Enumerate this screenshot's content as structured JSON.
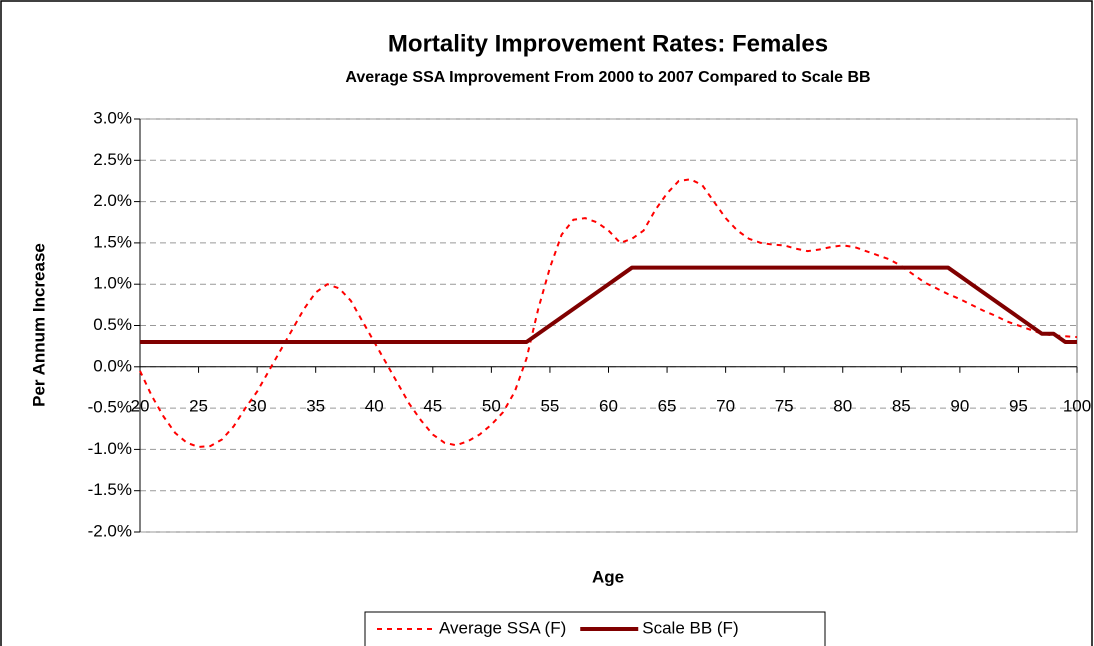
{
  "chart_data": {
    "type": "line",
    "title": "Mortality Improvement Rates: Females",
    "subtitle": "Average SSA Improvement From 2000 to 2007 Compared to Scale BB",
    "x_label": "Age",
    "y_label": "Per Annum Increase",
    "x": [
      20,
      21,
      22,
      23,
      24,
      25,
      26,
      27,
      28,
      29,
      30,
      31,
      32,
      33,
      34,
      35,
      36,
      37,
      38,
      39,
      40,
      41,
      42,
      43,
      44,
      45,
      46,
      47,
      48,
      49,
      50,
      51,
      52,
      53,
      54,
      55,
      56,
      57,
      58,
      59,
      60,
      61,
      62,
      63,
      64,
      65,
      66,
      67,
      68,
      69,
      70,
      71,
      72,
      73,
      74,
      75,
      76,
      77,
      78,
      79,
      80,
      81,
      82,
      83,
      84,
      85,
      86,
      87,
      88,
      89,
      90,
      91,
      92,
      93,
      94,
      95,
      96,
      97,
      98,
      99,
      100
    ],
    "series": [
      {
        "name": "Average SSA (F)",
        "color": "#ff0000",
        "dashed": true,
        "values": [
          -0.05,
          -0.35,
          -0.6,
          -0.8,
          -0.92,
          -0.97,
          -0.96,
          -0.88,
          -0.72,
          -0.5,
          -0.3,
          -0.05,
          0.2,
          0.45,
          0.7,
          0.9,
          1.0,
          0.95,
          0.8,
          0.55,
          0.3,
          0.05,
          -0.2,
          -0.45,
          -0.65,
          -0.82,
          -0.92,
          -0.95,
          -0.9,
          -0.82,
          -0.7,
          -0.55,
          -0.3,
          0.1,
          0.7,
          1.2,
          1.6,
          1.78,
          1.8,
          1.75,
          1.65,
          1.5,
          1.55,
          1.65,
          1.9,
          2.1,
          2.25,
          2.27,
          2.2,
          2.0,
          1.8,
          1.65,
          1.55,
          1.5,
          1.48,
          1.47,
          1.43,
          1.4,
          1.42,
          1.45,
          1.47,
          1.45,
          1.4,
          1.35,
          1.3,
          1.22,
          1.12,
          1.02,
          0.95,
          0.88,
          0.82,
          0.75,
          0.68,
          0.62,
          0.55,
          0.5,
          0.45,
          0.4,
          0.38,
          0.37,
          0.36
        ]
      },
      {
        "name": "Scale BB (F)",
        "color": "#800000",
        "dashed": false,
        "values": [
          0.3,
          0.3,
          0.3,
          0.3,
          0.3,
          0.3,
          0.3,
          0.3,
          0.3,
          0.3,
          0.3,
          0.3,
          0.3,
          0.3,
          0.3,
          0.3,
          0.3,
          0.3,
          0.3,
          0.3,
          0.3,
          0.3,
          0.3,
          0.3,
          0.3,
          0.3,
          0.3,
          0.3,
          0.3,
          0.3,
          0.3,
          0.3,
          0.3,
          0.3,
          0.4,
          0.5,
          0.6,
          0.7,
          0.8,
          0.9,
          1.0,
          1.1,
          1.2,
          1.2,
          1.2,
          1.2,
          1.2,
          1.2,
          1.2,
          1.2,
          1.2,
          1.2,
          1.2,
          1.2,
          1.2,
          1.2,
          1.2,
          1.2,
          1.2,
          1.2,
          1.2,
          1.2,
          1.2,
          1.2,
          1.2,
          1.2,
          1.2,
          1.2,
          1.2,
          1.2,
          1.1,
          1.0,
          0.9,
          0.8,
          0.7,
          0.6,
          0.5,
          0.4,
          0.4,
          0.3,
          0.3
        ]
      }
    ],
    "xlim": [
      20,
      100
    ],
    "xticks": [
      20,
      25,
      30,
      35,
      40,
      45,
      50,
      55,
      60,
      65,
      70,
      75,
      80,
      85,
      90,
      95,
      100
    ],
    "ylim": [
      -2.0,
      3.0
    ],
    "yticks": [
      {
        "value": -2.0,
        "label": "-2.0%"
      },
      {
        "value": -1.5,
        "label": "-1.5%"
      },
      {
        "value": -1.0,
        "label": "-1.0%"
      },
      {
        "value": -0.5,
        "label": "-0.5%"
      },
      {
        "value": 0.0,
        "label": "0.0%"
      },
      {
        "value": 0.5,
        "label": "0.5%"
      },
      {
        "value": 1.0,
        "label": "1.0%"
      },
      {
        "value": 1.5,
        "label": "1.5%"
      },
      {
        "value": 2.0,
        "label": "2.0%"
      },
      {
        "value": 2.5,
        "label": "2.5%"
      },
      {
        "value": 3.0,
        "label": "3.0%"
      }
    ],
    "grid": true,
    "legend": "bottom"
  }
}
